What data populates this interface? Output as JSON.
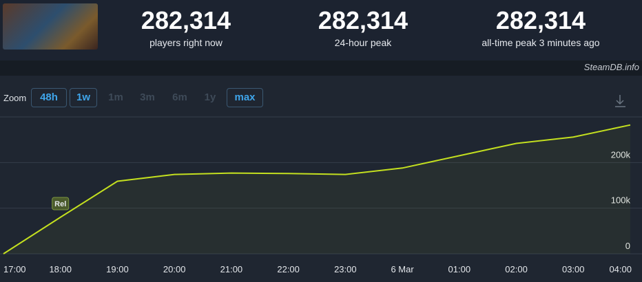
{
  "header": {
    "stats": [
      {
        "value": "282,314",
        "label": "players right now"
      },
      {
        "value": "282,314",
        "label": "24-hour peak"
      },
      {
        "value": "282,314",
        "label": "all-time peak 3 minutes ago"
      }
    ]
  },
  "site": "SteamDB.info",
  "zoom": {
    "label": "Zoom",
    "options": [
      "48h",
      "1w",
      "1m",
      "3m",
      "6m",
      "1y",
      "max"
    ]
  },
  "chart_data": {
    "type": "line",
    "categories": [
      "17:00",
      "18:00",
      "19:00",
      "20:00",
      "21:00",
      "22:00",
      "23:00",
      "6 Mar",
      "01:00",
      "02:00",
      "03:00",
      "04:00"
    ],
    "values": [
      0,
      80000,
      159000,
      174000,
      177000,
      176000,
      174000,
      188000,
      215000,
      242000,
      256000,
      282314
    ],
    "color": "#c4e01f",
    "ylim": [
      0,
      300000
    ],
    "yticks": [
      {
        "value": 0,
        "label": "0"
      },
      {
        "value": 100000,
        "label": "100k"
      },
      {
        "value": 200000,
        "label": "200k"
      }
    ],
    "grid": true,
    "annotation": {
      "text": "Rel",
      "x": "18:00"
    }
  }
}
